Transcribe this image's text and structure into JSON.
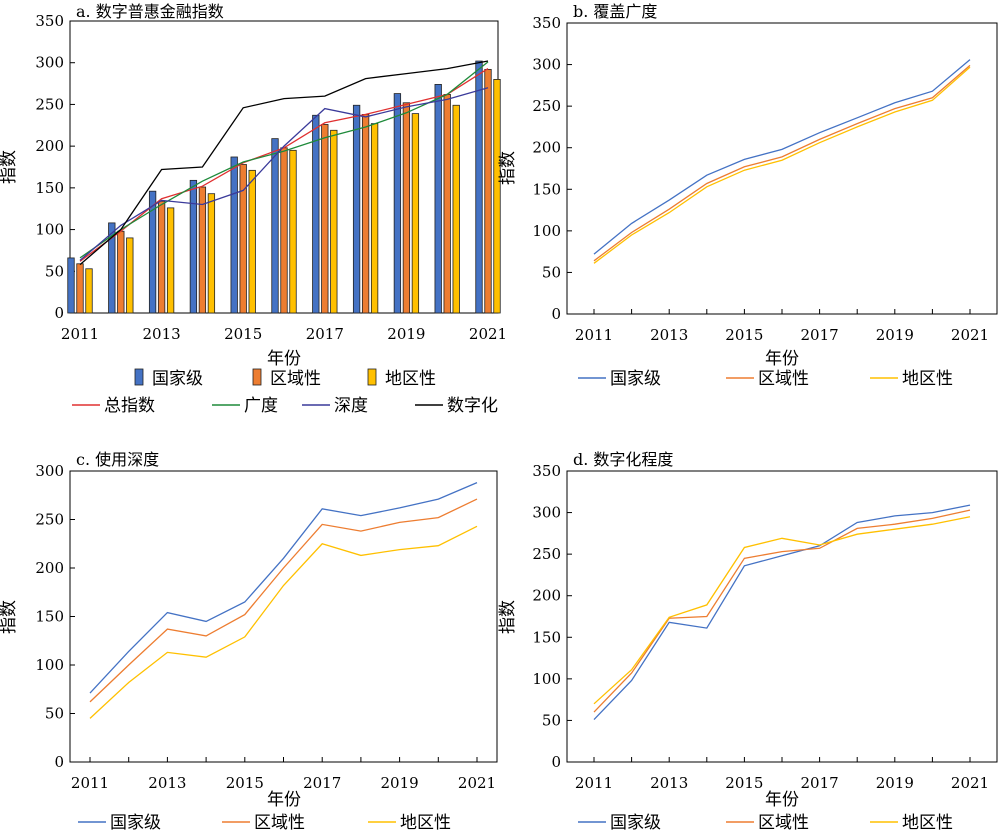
{
  "colors": {
    "national": "#4472c4",
    "regional": "#ed7d31",
    "local": "#ffc000",
    "total": "#e03030",
    "breadth": "#1e8a3a",
    "depth": "#3a3a9a",
    "digital": "#000000"
  },
  "legend_labels": {
    "national": "国家级",
    "regional": "区域性",
    "local": "地区性",
    "total": "总指数",
    "breadth": "广度",
    "depth": "深度",
    "digital": "数字化"
  },
  "chart_data": [
    {
      "id": "a",
      "type": "bar",
      "title": "a. 数字普惠金融指数",
      "xlabel": "年份",
      "ylabel": "指数",
      "ylim": [
        0,
        350
      ],
      "yticks": [
        0,
        50,
        100,
        150,
        200,
        250,
        300,
        350
      ],
      "categories": [
        2011,
        2012,
        2013,
        2014,
        2015,
        2016,
        2017,
        2018,
        2019,
        2020,
        2021
      ],
      "xtick_labels": [
        "2011",
        "2013",
        "2015",
        "2017",
        "2019",
        "2021"
      ],
      "series": [
        {
          "key": "national",
          "name": "国家级",
          "values": [
            66,
            108,
            146,
            159,
            187,
            209,
            237,
            249,
            263,
            274,
            302
          ]
        },
        {
          "key": "regional",
          "name": "区域性",
          "values": [
            59,
            98,
            134,
            151,
            178,
            198,
            226,
            238,
            252,
            262,
            292
          ]
        },
        {
          "key": "local",
          "name": "地区性",
          "values": [
            53,
            90,
            126,
            143,
            171,
            195,
            219,
            227,
            239,
            249,
            280
          ]
        }
      ],
      "line_series": [
        {
          "key": "total",
          "name": "总指数",
          "values": [
            62,
            98,
            137,
            152,
            180,
            198,
            228,
            238,
            250,
            262,
            293
          ]
        },
        {
          "key": "breadth",
          "name": "广度",
          "values": [
            66,
            100,
            130,
            158,
            181,
            194,
            210,
            223,
            240,
            262,
            301
          ]
        },
        {
          "key": "depth",
          "name": "深度",
          "values": [
            63,
            105,
            135,
            130,
            147,
            200,
            245,
            235,
            247,
            256,
            270
          ]
        },
        {
          "key": "digital",
          "name": "数字化",
          "values": [
            58,
            100,
            172,
            175,
            246,
            257,
            260,
            281,
            287,
            293,
            302
          ]
        }
      ],
      "legend_rows": [
        [
          "national",
          "regional",
          "local"
        ],
        [
          "total",
          "breadth",
          "depth",
          "digital"
        ]
      ]
    },
    {
      "id": "b",
      "type": "line",
      "title": "b. 覆盖广度",
      "xlabel": "年份",
      "ylabel": "指数",
      "ylim": [
        0,
        350
      ],
      "yticks": [
        0,
        50,
        100,
        150,
        200,
        250,
        300,
        350
      ],
      "x": [
        2011,
        2012,
        2013,
        2014,
        2015,
        2016,
        2017,
        2018,
        2019,
        2020,
        2021
      ],
      "xtick_labels": [
        "2011",
        "2013",
        "2015",
        "2017",
        "2019",
        "2021"
      ],
      "series": [
        {
          "key": "national",
          "name": "国家级",
          "values": [
            72,
            109,
            137,
            167,
            186,
            198,
            218,
            236,
            254,
            268,
            306
          ]
        },
        {
          "key": "regional",
          "name": "区域性",
          "values": [
            64,
            98,
            126,
            157,
            177,
            189,
            210,
            229,
            247,
            260,
            299
          ]
        },
        {
          "key": "local",
          "name": "地区性",
          "values": [
            61,
            95,
            122,
            153,
            173,
            185,
            206,
            225,
            243,
            257,
            297
          ]
        }
      ],
      "legend_rows": [
        [
          "national",
          "regional",
          "local"
        ]
      ]
    },
    {
      "id": "c",
      "type": "line",
      "title": "c. 使用深度",
      "xlabel": "年份",
      "ylabel": "指数",
      "ylim": [
        0,
        300
      ],
      "yticks": [
        0,
        50,
        100,
        150,
        200,
        250,
        300
      ],
      "x": [
        2011,
        2012,
        2013,
        2014,
        2015,
        2016,
        2017,
        2018,
        2019,
        2020,
        2021
      ],
      "xtick_labels": [
        "2011",
        "2013",
        "2015",
        "2017",
        "2019",
        "2021"
      ],
      "series": [
        {
          "key": "national",
          "name": "国家级",
          "values": [
            71,
            114,
            154,
            145,
            165,
            210,
            261,
            254,
            262,
            271,
            288
          ]
        },
        {
          "key": "regional",
          "name": "区域性",
          "values": [
            62,
            100,
            137,
            130,
            152,
            200,
            245,
            238,
            247,
            252,
            271
          ]
        },
        {
          "key": "local",
          "name": "地区性",
          "values": [
            45,
            82,
            113,
            108,
            129,
            182,
            225,
            213,
            219,
            223,
            243
          ]
        }
      ],
      "legend_rows": [
        [
          "national",
          "regional",
          "local"
        ]
      ]
    },
    {
      "id": "d",
      "type": "line",
      "title": "d. 数字化程度",
      "xlabel": "年份",
      "ylabel": "指数",
      "ylim": [
        0,
        350
      ],
      "yticks": [
        0,
        50,
        100,
        150,
        200,
        250,
        300,
        350
      ],
      "x": [
        2011,
        2012,
        2013,
        2014,
        2015,
        2016,
        2017,
        2018,
        2019,
        2020,
        2021
      ],
      "xtick_labels": [
        "2011",
        "2013",
        "2015",
        "2017",
        "2019",
        "2021"
      ],
      "series": [
        {
          "key": "national",
          "name": "国家级",
          "values": [
            51,
            98,
            168,
            161,
            236,
            248,
            260,
            288,
            296,
            300,
            309
          ]
        },
        {
          "key": "regional",
          "name": "区域性",
          "values": [
            60,
            107,
            173,
            175,
            245,
            253,
            257,
            281,
            286,
            293,
            303
          ]
        },
        {
          "key": "local",
          "name": "地区性",
          "values": [
            70,
            111,
            174,
            189,
            258,
            269,
            261,
            274,
            280,
            286,
            295
          ]
        }
      ],
      "legend_rows": [
        [
          "national",
          "regional",
          "local"
        ]
      ]
    }
  ]
}
